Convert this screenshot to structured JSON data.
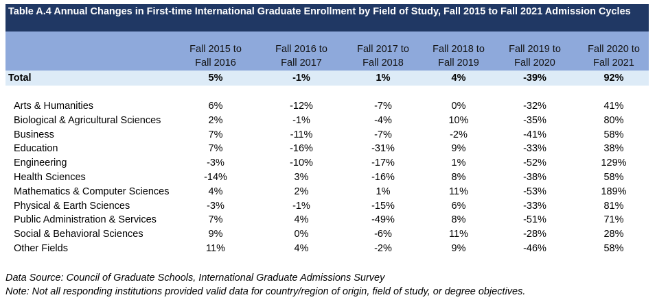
{
  "title": "Table A.4 Annual Changes in First-time International Graduate Enrollment by Field of Study, Fall 2015 to Fall 2021 Admission Cycles",
  "columns": [
    {
      "line1": "Fall 2015 to",
      "line2": "Fall 2016"
    },
    {
      "line1": "Fall 2016 to",
      "line2": "Fall 2017"
    },
    {
      "line1": "Fall 2017 to",
      "line2": "Fall 2018"
    },
    {
      "line1": "Fall 2018 to",
      "line2": "Fall 2019"
    },
    {
      "line1": "Fall 2019 to",
      "line2": "Fall 2020"
    },
    {
      "line1": "Fall 2020 to",
      "line2": "Fall 2021"
    }
  ],
  "total": {
    "label": "Total",
    "values": [
      "5%",
      "-1%",
      "1%",
      "4%",
      "-39%",
      "92%"
    ]
  },
  "rows": [
    {
      "label": "Arts & Humanities",
      "values": [
        "6%",
        "-12%",
        "-7%",
        "0%",
        "-32%",
        "41%"
      ]
    },
    {
      "label": "Biological & Agricultural Sciences",
      "values": [
        "2%",
        "-1%",
        "-4%",
        "10%",
        "-35%",
        "80%"
      ]
    },
    {
      "label": "Business",
      "values": [
        "7%",
        "-11%",
        "-7%",
        "-2%",
        "-41%",
        "58%"
      ]
    },
    {
      "label": "Education",
      "values": [
        "7%",
        "-16%",
        "-31%",
        "9%",
        "-33%",
        "38%"
      ]
    },
    {
      "label": "Engineering",
      "values": [
        "-3%",
        "-10%",
        "-17%",
        "1%",
        "-52%",
        "129%"
      ]
    },
    {
      "label": "Health Sciences",
      "values": [
        "-14%",
        "3%",
        "-16%",
        "8%",
        "-38%",
        "58%"
      ]
    },
    {
      "label": "Mathematics & Computer Sciences",
      "values": [
        "4%",
        "2%",
        "1%",
        "11%",
        "-53%",
        "189%"
      ]
    },
    {
      "label": "Physical & Earth Sciences",
      "values": [
        "-3%",
        "-1%",
        "-15%",
        "6%",
        "-33%",
        "81%"
      ]
    },
    {
      "label": "Public Administration & Services",
      "values": [
        "7%",
        "4%",
        "-49%",
        "8%",
        "-51%",
        "71%"
      ]
    },
    {
      "label": "Social & Behavioral Sciences",
      "values": [
        "9%",
        "0%",
        "-6%",
        "11%",
        "-28%",
        "28%"
      ]
    },
    {
      "label": "Other Fields",
      "values": [
        "11%",
        "4%",
        "-2%",
        "9%",
        "-46%",
        "58%"
      ]
    }
  ],
  "footnotes": {
    "source": "Data Source: Council of Graduate Schools, International Graduate Admissions Survey",
    "note": "Note: Not all responding institutions provided valid data for country/region of origin, field of study, or degree objectives."
  },
  "colors": {
    "title_bg": "#203864",
    "header_bg": "#8EA9DB",
    "total_bg": "#DDEBF7"
  }
}
